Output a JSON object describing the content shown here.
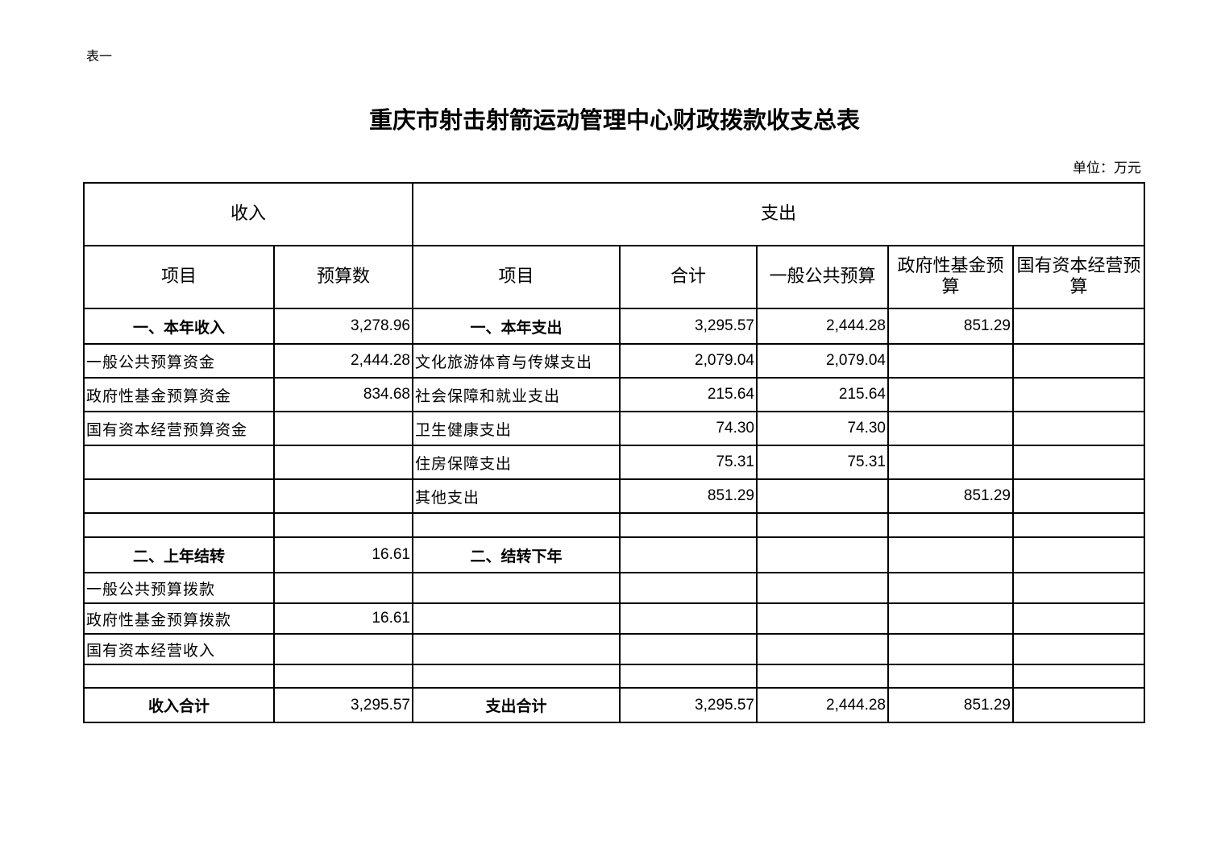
{
  "doc": {
    "label": "表一",
    "title": "重庆市射击射箭运动管理中心财政拨款收支总表",
    "unit": "单位：万元"
  },
  "headers": {
    "income": "收入",
    "expense": "支出",
    "cols": [
      "项目",
      "预算数",
      "项目",
      "合计",
      "一般公共预算",
      "政府性基金预算",
      "国有资本经营预算"
    ]
  },
  "rows": [
    {
      "h": 44,
      "cells": [
        "一、本年收入",
        "3,278.96",
        "一、本年支出",
        "3,295.57",
        "2,444.28",
        "851.29",
        ""
      ],
      "bold": [
        0,
        2
      ]
    },
    {
      "h": 42,
      "cells": [
        "一般公共预算资金",
        "2,444.28",
        "文化旅游体育与传媒支出",
        "2,079.04",
        "2,079.04",
        "",
        ""
      ]
    },
    {
      "h": 42,
      "cells": [
        "政府性基金预算资金",
        "834.68",
        "社会保障和就业支出",
        "215.64",
        "215.64",
        "",
        ""
      ]
    },
    {
      "h": 42,
      "cells": [
        "国有资本经营预算资金",
        "",
        "卫生健康支出",
        "74.30",
        "74.30",
        "",
        ""
      ]
    },
    {
      "h": 42,
      "cells": [
        "",
        "",
        "住房保障支出",
        "75.31",
        "75.31",
        "",
        ""
      ]
    },
    {
      "h": 42,
      "cells": [
        "",
        "",
        "其他支出",
        "851.29",
        "",
        "851.29",
        ""
      ]
    },
    {
      "h": 30,
      "cells": [
        "",
        "",
        "",
        "",
        "",
        "",
        ""
      ]
    },
    {
      "h": 44,
      "cells": [
        "二、上年结转",
        "16.61",
        "二、结转下年",
        "",
        "",
        "",
        ""
      ],
      "bold": [
        0,
        2
      ]
    },
    {
      "h": 38,
      "cells": [
        "一般公共预算拨款",
        "",
        "",
        "",
        "",
        "",
        ""
      ]
    },
    {
      "h": 38,
      "cells": [
        "政府性基金预算拨款",
        "16.61",
        "",
        "",
        "",
        "",
        ""
      ]
    },
    {
      "h": 38,
      "cells": [
        "国有资本经营收入",
        "",
        "",
        "",
        "",
        "",
        ""
      ]
    },
    {
      "h": 29,
      "cells": [
        "",
        "",
        "",
        "",
        "",
        "",
        ""
      ]
    },
    {
      "h": 43,
      "cells": [
        "收入合计",
        "3,295.57",
        "支出合计",
        "3,295.57",
        "2,444.28",
        "851.29",
        ""
      ],
      "bold": [
        0,
        2
      ]
    }
  ]
}
